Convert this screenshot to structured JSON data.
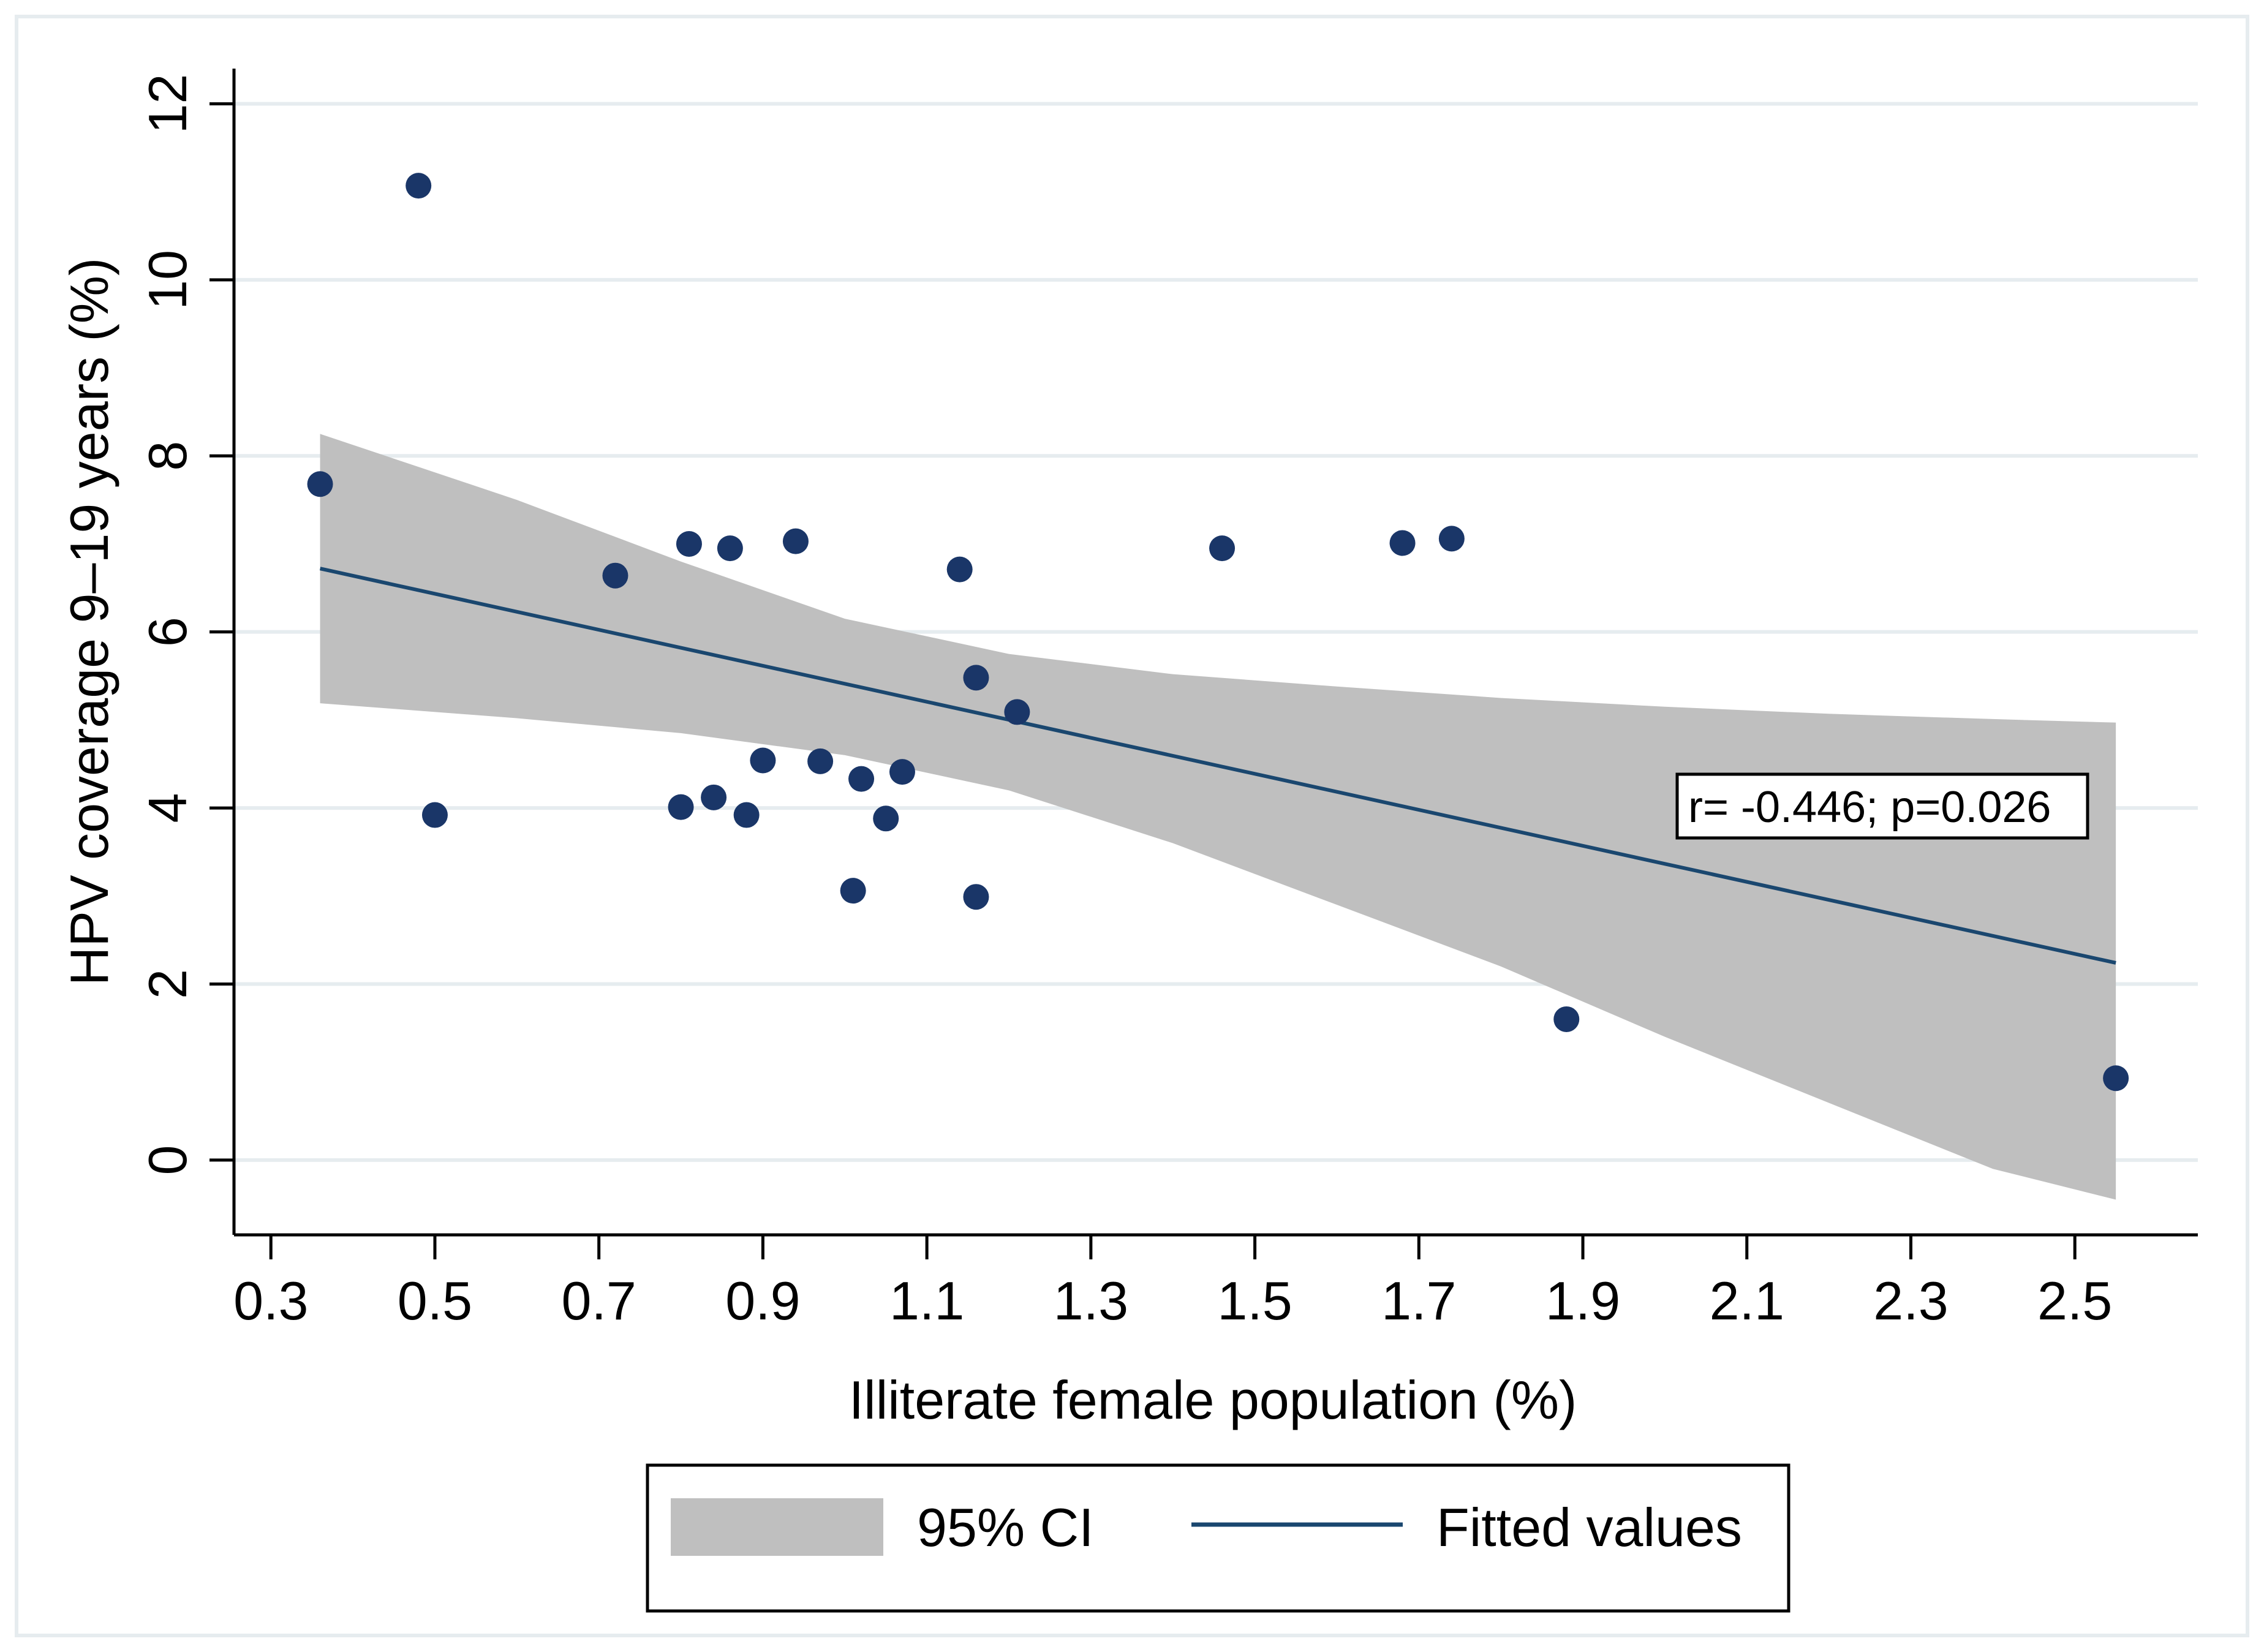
{
  "chart_data": {
    "type": "scatter",
    "title": "",
    "xlabel": "Illiterate female population (%)",
    "ylabel": "HPV coverage 9–19 years (%)",
    "xlim": [
      0.255,
      2.65
    ],
    "ylim": [
      -0.85,
      12.4
    ],
    "xticks": [
      0.3,
      0.5,
      0.7,
      0.9,
      1.1,
      1.3,
      1.5,
      1.7,
      1.9,
      2.1,
      2.3,
      2.5
    ],
    "xtick_labels": [
      "0.3",
      "0.5",
      "0.7",
      "0.9",
      "1.1",
      "1.3",
      "1.5",
      "1.7",
      "1.9",
      "2.1",
      "2.3",
      "2.5"
    ],
    "yticks": [
      0,
      2,
      4,
      6,
      8,
      10,
      12
    ],
    "ytick_labels": [
      "0",
      "2",
      "4",
      "6",
      "8",
      "10",
      "12"
    ],
    "grid": true,
    "points": [
      {
        "x": 0.36,
        "y": 7.68
      },
      {
        "x": 0.48,
        "y": 11.07
      },
      {
        "x": 0.5,
        "y": 3.92
      },
      {
        "x": 0.72,
        "y": 6.64
      },
      {
        "x": 0.8,
        "y": 4.01
      },
      {
        "x": 0.81,
        "y": 7.0
      },
      {
        "x": 0.84,
        "y": 4.12
      },
      {
        "x": 0.86,
        "y": 6.95
      },
      {
        "x": 0.88,
        "y": 3.92
      },
      {
        "x": 0.9,
        "y": 4.54
      },
      {
        "x": 0.94,
        "y": 7.03
      },
      {
        "x": 0.97,
        "y": 4.53
      },
      {
        "x": 1.01,
        "y": 3.06
      },
      {
        "x": 1.02,
        "y": 4.33
      },
      {
        "x": 1.05,
        "y": 3.88
      },
      {
        "x": 1.07,
        "y": 4.41
      },
      {
        "x": 1.14,
        "y": 6.71
      },
      {
        "x": 1.16,
        "y": 5.48
      },
      {
        "x": 1.16,
        "y": 2.99
      },
      {
        "x": 1.21,
        "y": 5.09
      },
      {
        "x": 1.46,
        "y": 6.95
      },
      {
        "x": 1.68,
        "y": 7.01
      },
      {
        "x": 1.74,
        "y": 7.06
      },
      {
        "x": 1.88,
        "y": 1.6
      },
      {
        "x": 2.55,
        "y": 0.93
      }
    ],
    "fitted_line": {
      "x": [
        0.36,
        2.55
      ],
      "y": [
        6.72,
        2.24
      ]
    },
    "ci_band": {
      "x": [
        0.36,
        0.6,
        0.8,
        1.0,
        1.2,
        1.4,
        1.6,
        1.8,
        2.0,
        2.2,
        2.4,
        2.55
      ],
      "lower": [
        5.19,
        5.02,
        4.85,
        4.6,
        4.2,
        3.6,
        2.9,
        2.2,
        1.4,
        0.65,
        -0.1,
        -0.45
      ],
      "upper": [
        8.25,
        7.5,
        6.8,
        6.15,
        5.75,
        5.52,
        5.38,
        5.25,
        5.15,
        5.07,
        5.01,
        4.97
      ]
    },
    "annotation": "r= -0.446; p=0.026",
    "legend": {
      "position": "bottom",
      "entries": [
        "95% CI",
        "Fitted values"
      ]
    },
    "colors": {
      "points": "#1a3668",
      "line": "#1a476f",
      "ci": "#bfbfbf",
      "grid": "#e6ecef",
      "axis": "#000000"
    }
  }
}
